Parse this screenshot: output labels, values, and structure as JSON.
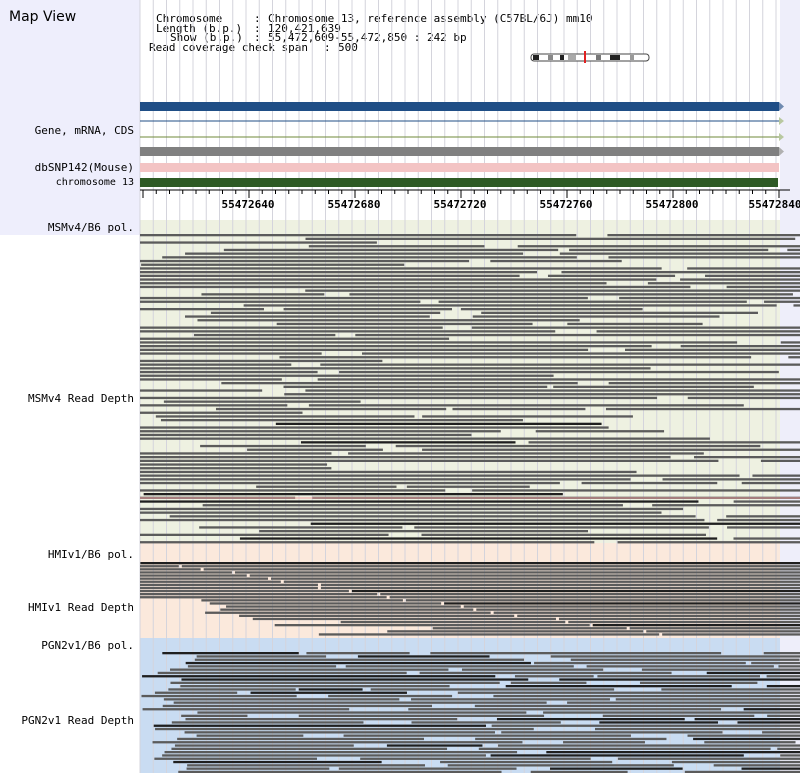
{
  "app": {
    "title": "Map View"
  },
  "info": {
    "chromosome_key": "Chromosome",
    "chromosome_value": "Chromosome 13, reference assembly (C57BL/6J) mm10",
    "length_key": "Length (b.p.)",
    "length_value": "120,421,639",
    "show_key": "Show (b.p.)",
    "show_value": "55,472,609-55,472,850 : 242 bp",
    "coverage_key": "Read coverage check span",
    "coverage_value": "500"
  },
  "tracks": {
    "gene_label": "Gene, mRNA, CDS",
    "snp_label": "dbSNP142(Mouse)",
    "chrom_label": "chromosome 13",
    "msm_pol_label": "MSMv4/B6 pol.",
    "msm_depth_label": "MSMv4 Read Depth",
    "hmi_pol_label": "HMIv1/B6 pol.",
    "hmi_depth_label": "HMIv1 Read Depth",
    "pgn_pol_label": "PGN2v1/B6 pol.",
    "pgn_depth_label": "PGN2v1 Read Depth"
  },
  "axis": {
    "ticks": [
      "55472640",
      "55472680",
      "55472720",
      "55472760",
      "55472800",
      "55472840"
    ]
  },
  "colors": {
    "gene_bar": "#1f4e86",
    "snp_bar": "#f3c4c4",
    "chrom_bar": "#2e5a24",
    "msm_bg": "#eef1e1",
    "hmi_bg": "#fbe9dc",
    "pgn_bg": "#c9dcf2",
    "read": "#5b5b5b",
    "read_dark": "#1f1f1f"
  }
}
